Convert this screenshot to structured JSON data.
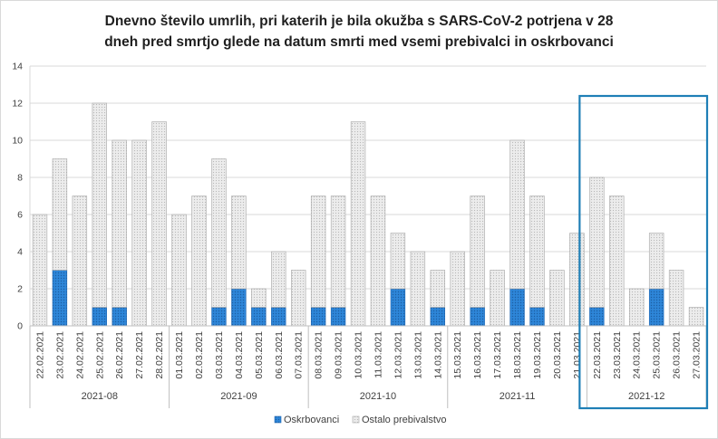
{
  "chart_data": {
    "type": "bar",
    "stacked": true,
    "title_line1": "Dnevno število umrlih, pri katerih je bila okužba s SARS-CoV-2 potrjena v 28",
    "title_line2": "dneh pred smrtjo glede na datum smrti med vsemi prebivalci in oskrbovanci",
    "ylim": [
      0,
      14
    ],
    "yticks": [
      "0",
      "2",
      "4",
      "6",
      "8",
      "10",
      "12",
      "14"
    ],
    "grid": true,
    "legend_position": "bottom",
    "categories": [
      "22.02.2021",
      "23.02.2021",
      "24.02.2021",
      "25.02.2021",
      "26.02.2021",
      "27.02.2021",
      "28.02.2021",
      "01.03.2021",
      "02.03.2021",
      "03.03.2021",
      "04.03.2021",
      "05.03.2021",
      "06.03.2021",
      "07.03.2021",
      "08.03.2021",
      "09.03.2021",
      "10.03.2021",
      "11.03.2021",
      "12.03.2021",
      "13.03.2021",
      "14.03.2021",
      "15.03.2021",
      "16.03.2021",
      "17.03.2021",
      "18.03.2021",
      "19.03.2021",
      "20.03.2021",
      "21.03.2021",
      "22.03.2021",
      "23.03.2021",
      "24.03.2021",
      "25.03.2021",
      "26.03.2021",
      "27.03.2021"
    ],
    "groups": [
      {
        "label": "2021-08",
        "count": 7
      },
      {
        "label": "2021-09",
        "count": 7
      },
      {
        "label": "2021-10",
        "count": 7
      },
      {
        "label": "2021-11",
        "count": 7
      },
      {
        "label": "2021-12",
        "count": 6
      }
    ],
    "series": [
      {
        "name": "Oskrbovanci",
        "color": "#2e86d9",
        "values": [
          0,
          3,
          0,
          1,
          1,
          0,
          0,
          0,
          0,
          1,
          2,
          1,
          1,
          0,
          1,
          1,
          0,
          0,
          2,
          0,
          1,
          0,
          1,
          0,
          2,
          1,
          0,
          0,
          1,
          0,
          0,
          2,
          0,
          0
        ]
      },
      {
        "name": "Ostalo prebivalstvo",
        "color": "#e6e6e6",
        "values": [
          6,
          6,
          7,
          11,
          9,
          10,
          11,
          6,
          7,
          8,
          5,
          1,
          3,
          3,
          6,
          6,
          11,
          7,
          3,
          4,
          2,
          4,
          6,
          3,
          8,
          6,
          3,
          5,
          7,
          7,
          2,
          3,
          3,
          1
        ]
      }
    ],
    "highlight_group": "2021-12"
  }
}
